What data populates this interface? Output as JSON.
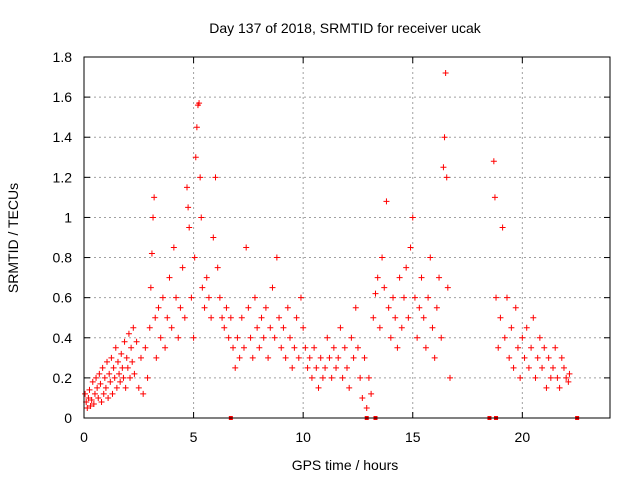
{
  "chart_data": {
    "type": "scatter",
    "title": "Day 137 of 2018, SRMTID for receiver ucak",
    "xlabel": "GPS time / hours",
    "ylabel": "SRMTID / TECUs",
    "xlim": [
      0,
      24
    ],
    "ylim": [
      0,
      1.8
    ],
    "xticks": [
      0,
      5,
      10,
      15,
      20
    ],
    "xtick_labels": [
      "0",
      "5",
      "10",
      "15",
      "20"
    ],
    "yticks": [
      0,
      0.2,
      0.4,
      0.6,
      0.8,
      1,
      1.2,
      1.4,
      1.6,
      1.8
    ],
    "ytick_labels": [
      "0",
      "0.2",
      "0.4",
      "0.6",
      "0.8",
      "1",
      "1.2",
      "1.4",
      "1.6",
      "1.8"
    ],
    "grid": true,
    "marker": "+",
    "color": "#ff0000",
    "series": [
      {
        "name": "SRMTID",
        "points": [
          [
            0.05,
            0.12
          ],
          [
            0.1,
            0.08
          ],
          [
            0.15,
            0.05
          ],
          [
            0.2,
            0.1
          ],
          [
            0.25,
            0.14
          ],
          [
            0.3,
            0.06
          ],
          [
            0.35,
            0.09
          ],
          [
            0.4,
            0.18
          ],
          [
            0.45,
            0.07
          ],
          [
            0.5,
            0.12
          ],
          [
            0.55,
            0.2
          ],
          [
            0.6,
            0.15
          ],
          [
            0.65,
            0.1
          ],
          [
            0.7,
            0.22
          ],
          [
            0.75,
            0.17
          ],
          [
            0.8,
            0.08
          ],
          [
            0.85,
            0.25
          ],
          [
            0.9,
            0.12
          ],
          [
            0.95,
            0.2
          ],
          [
            1.0,
            0.15
          ],
          [
            1.05,
            0.28
          ],
          [
            1.1,
            0.1
          ],
          [
            1.15,
            0.22
          ],
          [
            1.2,
            0.18
          ],
          [
            1.25,
            0.3
          ],
          [
            1.3,
            0.12
          ],
          [
            1.35,
            0.25
          ],
          [
            1.4,
            0.2
          ],
          [
            1.45,
            0.35
          ],
          [
            1.5,
            0.15
          ],
          [
            1.55,
            0.28
          ],
          [
            1.6,
            0.22
          ],
          [
            1.65,
            0.18
          ],
          [
            1.7,
            0.32
          ],
          [
            1.75,
            0.25
          ],
          [
            1.8,
            0.2
          ],
          [
            1.85,
            0.38
          ],
          [
            1.9,
            0.15
          ],
          [
            1.95,
            0.3
          ],
          [
            2.0,
            0.25
          ],
          [
            2.05,
            0.42
          ],
          [
            2.1,
            0.2
          ],
          [
            2.15,
            0.35
          ],
          [
            2.2,
            0.28
          ],
          [
            2.25,
            0.45
          ],
          [
            2.3,
            0.22
          ],
          [
            2.4,
            0.38
          ],
          [
            2.5,
            0.15
          ],
          [
            2.6,
            0.3
          ],
          [
            2.7,
            0.12
          ],
          [
            2.8,
            0.35
          ],
          [
            2.9,
            0.2
          ],
          [
            3.0,
            0.45
          ],
          [
            3.05,
            0.65
          ],
          [
            3.1,
            0.82
          ],
          [
            3.15,
            1.0
          ],
          [
            3.2,
            1.1
          ],
          [
            3.25,
            0.5
          ],
          [
            3.3,
            0.3
          ],
          [
            3.4,
            0.55
          ],
          [
            3.5,
            0.4
          ],
          [
            3.6,
            0.6
          ],
          [
            3.7,
            0.35
          ],
          [
            3.8,
            0.5
          ],
          [
            3.9,
            0.7
          ],
          [
            4.0,
            0.45
          ],
          [
            4.1,
            0.85
          ],
          [
            4.2,
            0.6
          ],
          [
            4.3,
            0.4
          ],
          [
            4.4,
            0.55
          ],
          [
            4.5,
            0.75
          ],
          [
            4.6,
            0.5
          ],
          [
            4.7,
            1.15
          ],
          [
            4.75,
            1.05
          ],
          [
            4.8,
            0.95
          ],
          [
            4.9,
            0.6
          ],
          [
            5.0,
            0.4
          ],
          [
            5.05,
            0.8
          ],
          [
            5.1,
            1.3
          ],
          [
            5.15,
            1.45
          ],
          [
            5.2,
            1.56
          ],
          [
            5.25,
            1.57
          ],
          [
            5.3,
            1.2
          ],
          [
            5.35,
            1.0
          ],
          [
            5.4,
            0.65
          ],
          [
            5.5,
            0.55
          ],
          [
            5.6,
            0.7
          ],
          [
            5.7,
            0.6
          ],
          [
            5.8,
            0.5
          ],
          [
            5.9,
            0.9
          ],
          [
            6.0,
            1.2
          ],
          [
            6.1,
            0.75
          ],
          [
            6.2,
            0.6
          ],
          [
            6.3,
            0.5
          ],
          [
            6.4,
            0.45
          ],
          [
            6.5,
            0.55
          ],
          [
            6.6,
            0.4
          ],
          [
            6.7,
            0.5
          ],
          [
            6.8,
            0.35
          ],
          [
            6.9,
            0.25
          ],
          [
            7.0,
            0.4
          ],
          [
            7.1,
            0.3
          ],
          [
            7.2,
            0.5
          ],
          [
            7.3,
            0.35
          ],
          [
            7.4,
            0.85
          ],
          [
            7.5,
            0.55
          ],
          [
            7.6,
            0.4
          ],
          [
            7.7,
            0.3
          ],
          [
            7.8,
            0.6
          ],
          [
            7.9,
            0.45
          ],
          [
            8.0,
            0.35
          ],
          [
            8.1,
            0.5
          ],
          [
            8.2,
            0.4
          ],
          [
            8.3,
            0.55
          ],
          [
            8.4,
            0.3
          ],
          [
            8.5,
            0.45
          ],
          [
            8.6,
            0.65
          ],
          [
            8.7,
            0.4
          ],
          [
            8.8,
            0.8
          ],
          [
            8.9,
            0.5
          ],
          [
            9.0,
            0.35
          ],
          [
            9.1,
            0.45
          ],
          [
            9.2,
            0.3
          ],
          [
            9.3,
            0.55
          ],
          [
            9.4,
            0.4
          ],
          [
            9.5,
            0.25
          ],
          [
            9.6,
            0.35
          ],
          [
            9.7,
            0.5
          ],
          [
            9.8,
            0.3
          ],
          [
            9.9,
            0.6
          ],
          [
            10.0,
            0.45
          ],
          [
            10.1,
            0.35
          ],
          [
            10.2,
            0.25
          ],
          [
            10.3,
            0.3
          ],
          [
            10.4,
            0.2
          ],
          [
            10.5,
            0.35
          ],
          [
            10.6,
            0.25
          ],
          [
            10.7,
            0.15
          ],
          [
            10.8,
            0.3
          ],
          [
            10.9,
            0.2
          ],
          [
            11.0,
            0.25
          ],
          [
            11.1,
            0.4
          ],
          [
            11.2,
            0.3
          ],
          [
            11.3,
            0.2
          ],
          [
            11.4,
            0.35
          ],
          [
            11.5,
            0.25
          ],
          [
            11.6,
            0.3
          ],
          [
            11.7,
            0.45
          ],
          [
            11.8,
            0.2
          ],
          [
            11.9,
            0.35
          ],
          [
            12.0,
            0.25
          ],
          [
            12.1,
            0.15
          ],
          [
            12.2,
            0.4
          ],
          [
            12.3,
            0.3
          ],
          [
            12.4,
            0.55
          ],
          [
            12.5,
            0.35
          ],
          [
            12.6,
            0.2
          ],
          [
            12.7,
            0.1
          ],
          [
            12.8,
            0.3
          ],
          [
            12.9,
            0.05
          ],
          [
            13.0,
            0.2
          ],
          [
            13.1,
            0.12
          ],
          [
            13.2,
            0.5
          ],
          [
            13.3,
            0.62
          ],
          [
            13.4,
            0.7
          ],
          [
            13.5,
            0.45
          ],
          [
            13.6,
            0.8
          ],
          [
            13.7,
            0.65
          ],
          [
            13.8,
            1.08
          ],
          [
            13.9,
            0.55
          ],
          [
            14.0,
            0.4
          ],
          [
            14.1,
            0.6
          ],
          [
            14.2,
            0.5
          ],
          [
            14.3,
            0.35
          ],
          [
            14.4,
            0.7
          ],
          [
            14.5,
            0.45
          ],
          [
            14.6,
            0.6
          ],
          [
            14.7,
            0.75
          ],
          [
            14.8,
            0.5
          ],
          [
            14.9,
            0.85
          ],
          [
            15.0,
            1.0
          ],
          [
            15.1,
            0.6
          ],
          [
            15.2,
            0.4
          ],
          [
            15.3,
            0.55
          ],
          [
            15.4,
            0.7
          ],
          [
            15.5,
            0.5
          ],
          [
            15.6,
            0.35
          ],
          [
            15.7,
            0.6
          ],
          [
            15.8,
            0.8
          ],
          [
            15.9,
            0.45
          ],
          [
            16.0,
            0.3
          ],
          [
            16.1,
            0.55
          ],
          [
            16.2,
            0.7
          ],
          [
            16.3,
            0.4
          ],
          [
            16.4,
            1.25
          ],
          [
            16.45,
            1.4
          ],
          [
            16.5,
            1.72
          ],
          [
            16.55,
            1.2
          ],
          [
            16.6,
            0.65
          ],
          [
            16.7,
            0.2
          ],
          [
            18.7,
            1.28
          ],
          [
            18.75,
            1.1
          ],
          [
            18.8,
            0.6
          ],
          [
            18.9,
            0.35
          ],
          [
            19.0,
            0.5
          ],
          [
            19.1,
            0.95
          ],
          [
            19.2,
            0.4
          ],
          [
            19.3,
            0.6
          ],
          [
            19.4,
            0.3
          ],
          [
            19.5,
            0.45
          ],
          [
            19.6,
            0.25
          ],
          [
            19.7,
            0.55
          ],
          [
            19.8,
            0.35
          ],
          [
            19.9,
            0.2
          ],
          [
            20.0,
            0.4
          ],
          [
            20.1,
            0.3
          ],
          [
            20.2,
            0.45
          ],
          [
            20.3,
            0.25
          ],
          [
            20.4,
            0.35
          ],
          [
            20.5,
            0.5
          ],
          [
            20.6,
            0.2
          ],
          [
            20.7,
            0.3
          ],
          [
            20.8,
            0.4
          ],
          [
            20.9,
            0.25
          ],
          [
            21.0,
            0.35
          ],
          [
            21.1,
            0.15
          ],
          [
            21.2,
            0.3
          ],
          [
            21.3,
            0.2
          ],
          [
            21.4,
            0.25
          ],
          [
            21.5,
            0.35
          ],
          [
            21.6,
            0.2
          ],
          [
            21.7,
            0.15
          ],
          [
            21.8,
            0.3
          ],
          [
            21.9,
            0.25
          ],
          [
            22.0,
            0.2
          ],
          [
            22.1,
            0.18
          ],
          [
            22.15,
            0.22
          ]
        ],
        "gap_markers_x": [
          6.7,
          12.9,
          13.3,
          18.5,
          18.8,
          22.5
        ]
      }
    ]
  }
}
